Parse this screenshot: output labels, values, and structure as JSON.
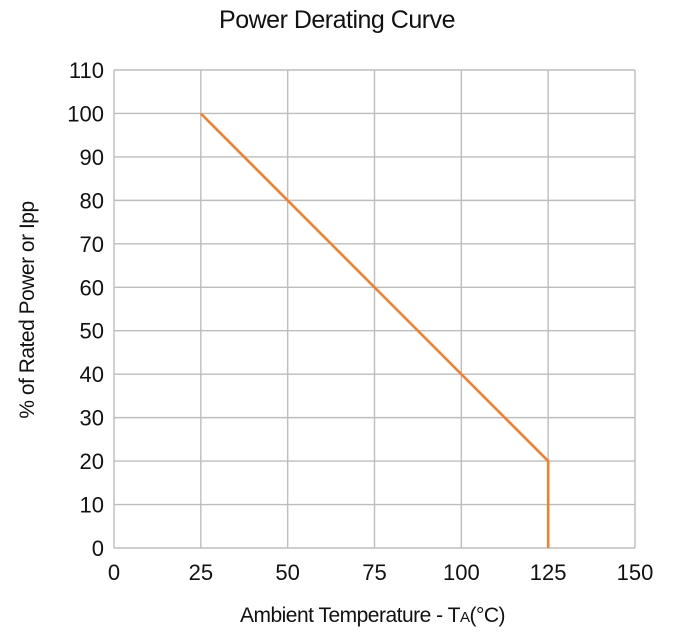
{
  "chart_data": {
    "type": "line",
    "title": "Power Derating Curve",
    "xlabel_main": "Ambient Temperature - T",
    "xlabel_sub": "A",
    "xlabel_unit": "(°C)",
    "ylabel": "% of Rated Power or Ipp",
    "xlim": [
      0,
      150
    ],
    "ylim": [
      0,
      110
    ],
    "x_ticks": [
      0,
      25,
      50,
      75,
      100,
      125,
      150
    ],
    "y_ticks": [
      0,
      10,
      20,
      30,
      40,
      50,
      60,
      70,
      80,
      90,
      100,
      110
    ],
    "grid": true,
    "series": [
      {
        "color": "#f08030",
        "points": [
          [
            25,
            100
          ],
          [
            125,
            20
          ],
          [
            125,
            0
          ]
        ]
      }
    ]
  }
}
